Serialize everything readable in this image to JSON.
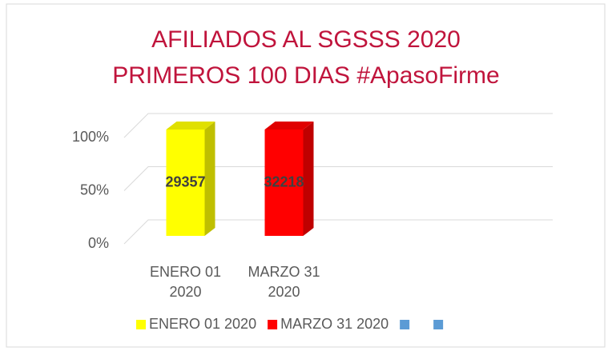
{
  "chart_data": {
    "type": "bar",
    "stacking": "percent",
    "title": "AFILIADOS AL SGSSS 2020",
    "subtitle": "PRIMEROS 100 DIAS #ApasoFirme",
    "categories": [
      "ENERO 01 2020",
      "MARZO 31 2020"
    ],
    "series": [
      {
        "name": "ENERO 01 2020",
        "color": "#ffff00",
        "values": [
          29357,
          null
        ]
      },
      {
        "name": "MARZO 31 2020",
        "color": "#ff0000",
        "values": [
          null,
          32218
        ]
      },
      {
        "color": "#5b9bd5",
        "values": [
          null,
          null
        ]
      },
      {
        "color": "#5b9bd5",
        "values": [
          null,
          null
        ]
      }
    ],
    "ylim": [
      0,
      100
    ],
    "yticks": [
      {
        "value": 0,
        "label": "0%"
      },
      {
        "value": 50,
        "label": "50%"
      },
      {
        "value": 100,
        "label": "100%"
      }
    ],
    "grid": true,
    "legend": "bottom"
  }
}
